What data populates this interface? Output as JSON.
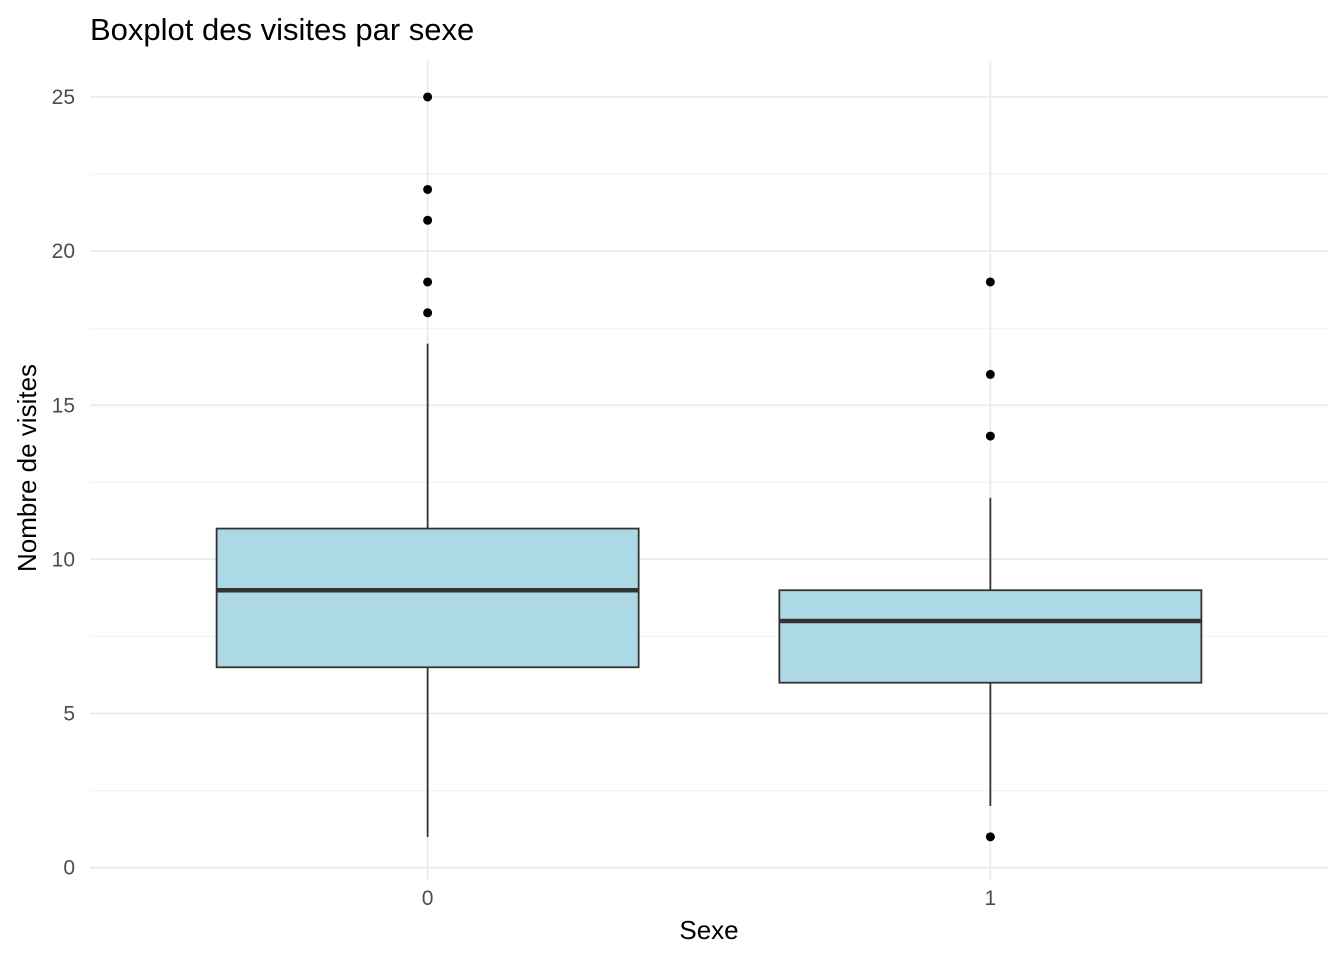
{
  "chart_data": {
    "type": "boxplot",
    "title": "Boxplot des visites par sexe",
    "xlabel": "Sexe",
    "ylabel": "Nombre de visites",
    "categories": [
      "0",
      "1"
    ],
    "ylim": [
      -0.4,
      26.2
    ],
    "yticks": [
      0,
      5,
      10,
      15,
      20,
      25
    ],
    "grid": true,
    "legend": "none",
    "boxes": [
      {
        "category": "0",
        "whisker_low": 1,
        "q1": 6.5,
        "median": 9,
        "q3": 11,
        "whisker_high": 17,
        "outliers": [
          18,
          19,
          21,
          22,
          25
        ]
      },
      {
        "category": "1",
        "whisker_low": 2,
        "q1": 6,
        "median": 8,
        "q3": 9,
        "whisker_high": 12,
        "outliers": [
          1,
          14,
          16,
          19
        ]
      }
    ],
    "colors": {
      "box_fill": "#add8e6",
      "box_stroke": "#333333",
      "median": "#333333",
      "outlier": "#000000",
      "grid_major": "#ebebeb",
      "grid_minor": "#f2f2f2"
    }
  }
}
